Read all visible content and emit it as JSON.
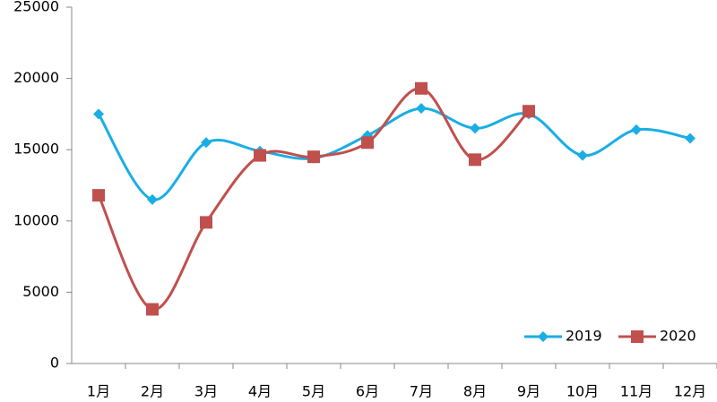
{
  "chart_data": {
    "type": "line",
    "smooth": true,
    "categories": [
      "1月",
      "2月",
      "3月",
      "4月",
      "5月",
      "6月",
      "7月",
      "8月",
      "9月",
      "10月",
      "11月",
      "12月"
    ],
    "series": [
      {
        "name": "2019",
        "color": "#1aaee5",
        "marker": "diamond",
        "values": [
          17500,
          11500,
          15500,
          14900,
          14400,
          16000,
          17900,
          16500,
          17500,
          14600,
          16400,
          15800
        ]
      },
      {
        "name": "2020",
        "color": "#c0504d",
        "marker": "square",
        "values": [
          11800,
          3800,
          9900,
          14600,
          14500,
          15500,
          19300,
          14300,
          17700,
          null,
          null,
          null
        ]
      }
    ],
    "ylim": [
      0,
      25000
    ],
    "yticks": [
      0,
      5000,
      10000,
      15000,
      20000,
      25000
    ],
    "grid": false,
    "legend": "lower right"
  }
}
